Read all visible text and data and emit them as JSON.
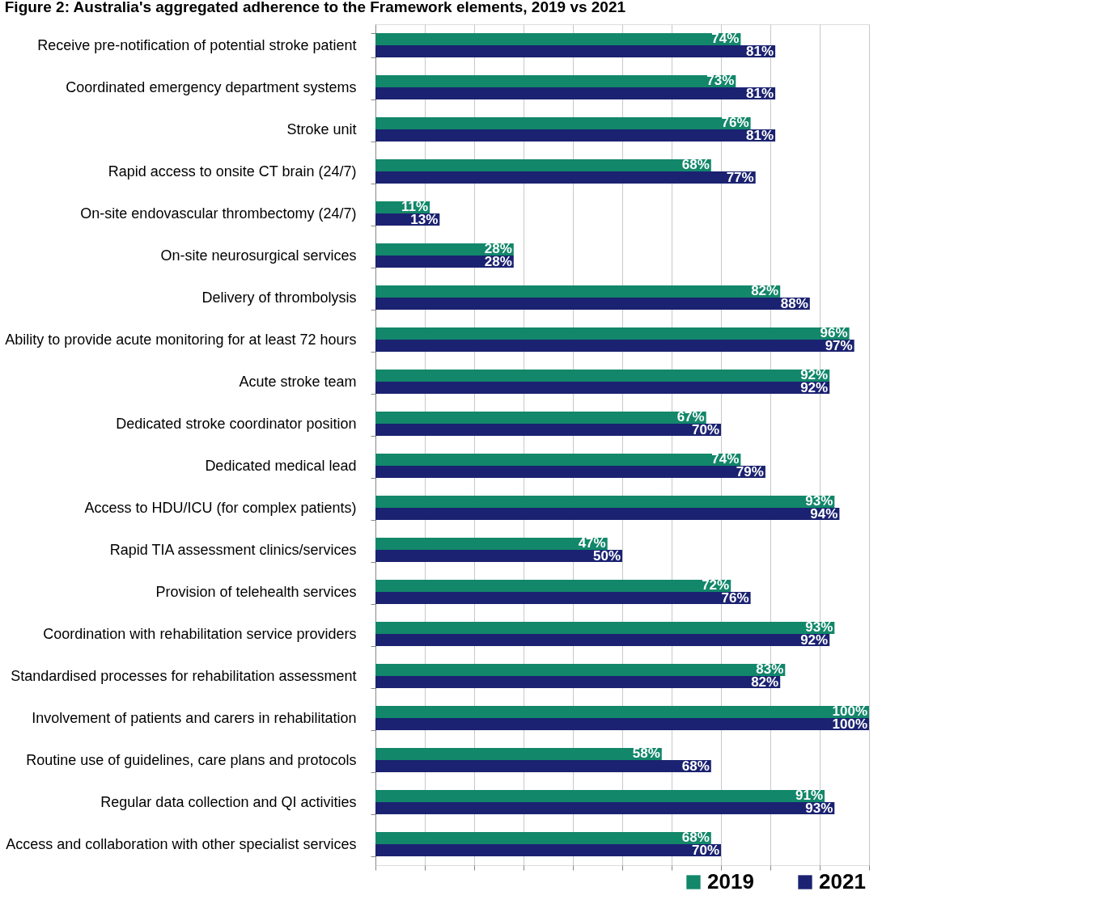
{
  "chart_data": {
    "type": "bar",
    "orientation": "horizontal",
    "title": "Figure 2: Australia's aggregated adherence to the Framework elements, 2019 vs 2021",
    "categories": [
      "Receive pre-notification of potential stroke patient",
      "Coordinated emergency department systems",
      "Stroke unit",
      "Rapid access to onsite CT brain (24/7)",
      "On-site endovascular thrombectomy (24/7)",
      "On-site neurosurgical services",
      "Delivery of thrombolysis",
      "Ability to provide acute monitoring for at least 72 hours",
      "Acute stroke team",
      "Dedicated stroke coordinator position",
      "Dedicated medical lead",
      "Access to HDU/ICU (for complex patients)",
      "Rapid TIA assessment clinics/services",
      "Provision of telehealth services",
      "Coordination with rehabilitation service providers",
      "Standardised processes for rehabilitation assessment",
      "Involvement of patients and carers in rehabilitation",
      "Routine use of guidelines, care plans and protocols",
      "Regular data collection and QI activities",
      "Access and collaboration with other specialist services"
    ],
    "series": [
      {
        "name": "2019",
        "color": "#12876a",
        "values": [
          74,
          73,
          76,
          68,
          11,
          28,
          82,
          96,
          92,
          67,
          74,
          93,
          47,
          72,
          93,
          83,
          100,
          58,
          91,
          68
        ],
        "value_labels": [
          "74%",
          "73%",
          "76%",
          "68%",
          "11%",
          "28%",
          "82%",
          "96%",
          "92%",
          "67%",
          "74%",
          "93%",
          "47%",
          "72%",
          "93%",
          "83%",
          "100%",
          "58%",
          "91%",
          "68%"
        ]
      },
      {
        "name": "2021",
        "color": "#1b2271",
        "values": [
          81,
          81,
          81,
          77,
          13,
          28,
          88,
          97,
          92,
          70,
          79,
          94,
          50,
          76,
          92,
          82,
          100,
          68,
          93,
          70
        ],
        "value_labels": [
          "81%",
          "81%",
          "81%",
          "77%",
          "13%",
          "28%",
          "88%",
          "97%",
          "92%",
          "70%",
          "79%",
          "94%",
          "50%",
          "76%",
          "92%",
          "82%",
          "100%",
          "68%",
          "93%",
          "70%"
        ]
      }
    ],
    "xlim": [
      0,
      100
    ],
    "xticks": [
      {
        "value": 0,
        "label": null
      },
      {
        "value": 10,
        "label": null
      },
      {
        "value": 20,
        "label": null
      },
      {
        "value": 30,
        "label": null
      },
      {
        "value": 40,
        "label": null
      },
      {
        "value": 50,
        "label": null
      },
      {
        "value": 60,
        "label": null
      },
      {
        "value": 70,
        "label": null
      },
      {
        "value": 80,
        "label": null
      },
      {
        "value": 90,
        "label": null
      },
      {
        "value": 100,
        "label": null
      }
    ],
    "tick_labels": "y",
    "grid": "x",
    "legend": "bottom right"
  }
}
